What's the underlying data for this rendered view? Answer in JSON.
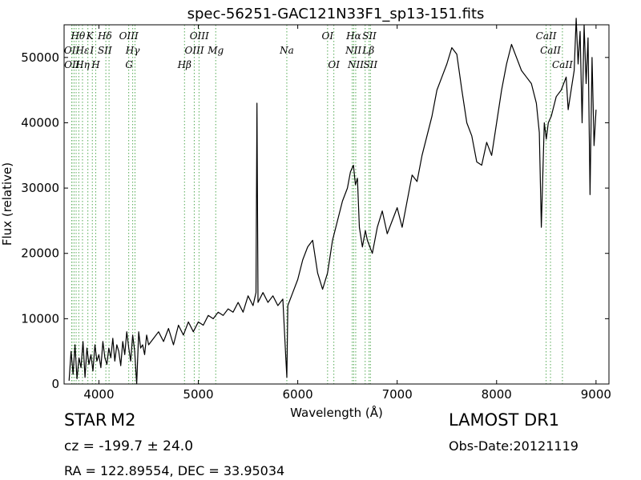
{
  "chart_data": {
    "type": "line",
    "title": "spec-56251-GAC121N33F1_sp13-151.fits",
    "xlabel": "Wavelength (Å)",
    "ylabel": "Flux (relative)",
    "xlim": [
      3650,
      9130
    ],
    "ylim": [
      0,
      55000
    ],
    "xticks": [
      4000,
      5000,
      6000,
      7000,
      8000,
      9000
    ],
    "yticks": [
      0,
      10000,
      20000,
      30000,
      40000,
      50000
    ],
    "grid": false,
    "series": [
      {
        "x": [
          3700,
          3720,
          3740,
          3760,
          3780,
          3800,
          3820,
          3840,
          3860,
          3880,
          3900,
          3920,
          3940,
          3960,
          3980,
          4000,
          4020,
          4040,
          4060,
          4080,
          4100,
          4120,
          4140,
          4160,
          4180,
          4200,
          4220,
          4240,
          4260,
          4280,
          4300,
          4320,
          4340,
          4360,
          4380,
          4400,
          4420,
          4440,
          4460,
          4480,
          4500,
          4550,
          4600,
          4650,
          4700,
          4750,
          4800,
          4850,
          4900,
          4950,
          5000,
          5050,
          5100,
          5150,
          5200,
          5250,
          5300,
          5350,
          5400,
          5450,
          5500,
          5550,
          5580,
          5590,
          5600,
          5650,
          5700,
          5750,
          5800,
          5850,
          5880,
          5890,
          5900,
          5950,
          6000,
          6050,
          6100,
          6150,
          6200,
          6250,
          6300,
          6350,
          6400,
          6450,
          6500,
          6530,
          6560,
          6580,
          6600,
          6620,
          6650,
          6680,
          6700,
          6750,
          6800,
          6850,
          6900,
          6950,
          7000,
          7050,
          7100,
          7150,
          7200,
          7250,
          7300,
          7350,
          7400,
          7450,
          7500,
          7550,
          7600,
          7650,
          7700,
          7750,
          7800,
          7850,
          7900,
          7950,
          8000,
          8050,
          8100,
          8150,
          8200,
          8250,
          8300,
          8350,
          8400,
          8430,
          8450,
          8480,
          8500,
          8520,
          8550,
          8600,
          8650,
          8700,
          8720,
          8750,
          8780,
          8800,
          8820,
          8840,
          8860,
          8880,
          8900,
          8920,
          8940,
          8960,
          8980,
          9000
        ],
        "y": [
          500,
          5000,
          1500,
          6000,
          800,
          4000,
          2500,
          6500,
          1000,
          5500,
          3000,
          4500,
          2000,
          6000,
          3500,
          4500,
          2500,
          6500,
          4000,
          3000,
          5500,
          4000,
          7000,
          3500,
          6000,
          5000,
          2800,
          6500,
          4500,
          8000,
          5500,
          3500,
          7500,
          5000,
          0,
          8000,
          5500,
          6000,
          4500,
          7500,
          6000,
          7000,
          8000,
          6500,
          8500,
          6000,
          9000,
          7500,
          9500,
          8000,
          9500,
          9000,
          10500,
          10000,
          11000,
          10500,
          11500,
          11000,
          12500,
          11000,
          13500,
          12000,
          14000,
          43000,
          12500,
          14000,
          12500,
          13500,
          12000,
          13000,
          4000,
          1000,
          12000,
          14000,
          16000,
          19000,
          21000,
          22000,
          17000,
          14500,
          17000,
          22000,
          25000,
          28000,
          30000,
          32500,
          33500,
          30500,
          31500,
          24000,
          21000,
          23500,
          22000,
          20000,
          24000,
          26500,
          23000,
          25000,
          27000,
          24000,
          28000,
          32000,
          31000,
          35000,
          38000,
          41000,
          45000,
          47000,
          49000,
          51500,
          50500,
          45000,
          40000,
          38000,
          34000,
          33500,
          37000,
          35000,
          40000,
          45000,
          49000,
          52000,
          50000,
          48000,
          47000,
          46000,
          43000,
          38500,
          24000,
          40000,
          37500,
          40000,
          41000,
          44000,
          45000,
          47000,
          42000,
          45000,
          48000,
          56000,
          49000,
          54000,
          40000,
          55000,
          46000,
          53000,
          29000,
          50000,
          36500,
          42000
        ]
      }
    ],
    "lines_top": [
      {
        "label": "Hθ",
        "x": 3790,
        "row": 0
      },
      {
        "label": "K",
        "x": 3910,
        "row": 0
      },
      {
        "label": "Hδ",
        "x": 4060,
        "row": 0
      },
      {
        "label": "OIII",
        "x": 4300,
        "row": 0
      },
      {
        "label": "OIII",
        "x": 5010,
        "row": 0
      },
      {
        "label": "OI",
        "x": 6300,
        "row": 0
      },
      {
        "label": "Hα",
        "x": 6563,
        "row": 0
      },
      {
        "label": "SII",
        "x": 6720,
        "row": 0
      },
      {
        "label": "CaII",
        "x": 8498,
        "row": 0
      },
      {
        "label": "OII",
        "x": 3727,
        "row": 1
      },
      {
        "label": "Hε",
        "x": 3835,
        "row": 1
      },
      {
        "label": "I",
        "x": 3930,
        "row": 1
      },
      {
        "label": "SII",
        "x": 4060,
        "row": 1
      },
      {
        "label": "Hγ",
        "x": 4340,
        "row": 1
      },
      {
        "label": "OIII",
        "x": 4960,
        "row": 1
      },
      {
        "label": "Mg",
        "x": 5175,
        "row": 1
      },
      {
        "label": "Na",
        "x": 5890,
        "row": 1
      },
      {
        "label": "NII",
        "x": 6560,
        "row": 1
      },
      {
        "label": "Lβ",
        "x": 6710,
        "row": 1
      },
      {
        "label": "CaII",
        "x": 8542,
        "row": 1
      }
    ],
    "lines_bottom": [
      {
        "label": "OII",
        "x": 3729,
        "row": 2
      },
      {
        "label": "Hη",
        "x": 3835,
        "row": 2
      },
      {
        "label": "H",
        "x": 3968,
        "row": 2
      },
      {
        "label": "G",
        "x": 4304,
        "row": 2
      },
      {
        "label": "Hβ",
        "x": 4861,
        "row": 2
      },
      {
        "label": "OI",
        "x": 6363,
        "row": 2
      },
      {
        "label": "NII",
        "x": 6583,
        "row": 2
      },
      {
        "label": "SII",
        "x": 6731,
        "row": 2
      },
      {
        "label": "CaII",
        "x": 8662,
        "row": 2
      }
    ],
    "marker_lines": [
      3727,
      3729,
      3750,
      3771,
      3798,
      3835,
      3889,
      3934,
      3968,
      4070,
      4102,
      4300,
      4340,
      4363,
      4861,
      4959,
      5007,
      5175,
      5890,
      6300,
      6363,
      6548,
      6563,
      6583,
      6678,
      6717,
      6731,
      8498,
      8542,
      8662
    ]
  },
  "info": {
    "object_class": "STAR",
    "object_subclass": "M2",
    "survey": "LAMOST DR1",
    "cz": "cz = -199.7 ± 24.0",
    "obs_date": "Obs-Date:20121119",
    "radec": "RA = 122.89554, DEC = 33.95034"
  }
}
